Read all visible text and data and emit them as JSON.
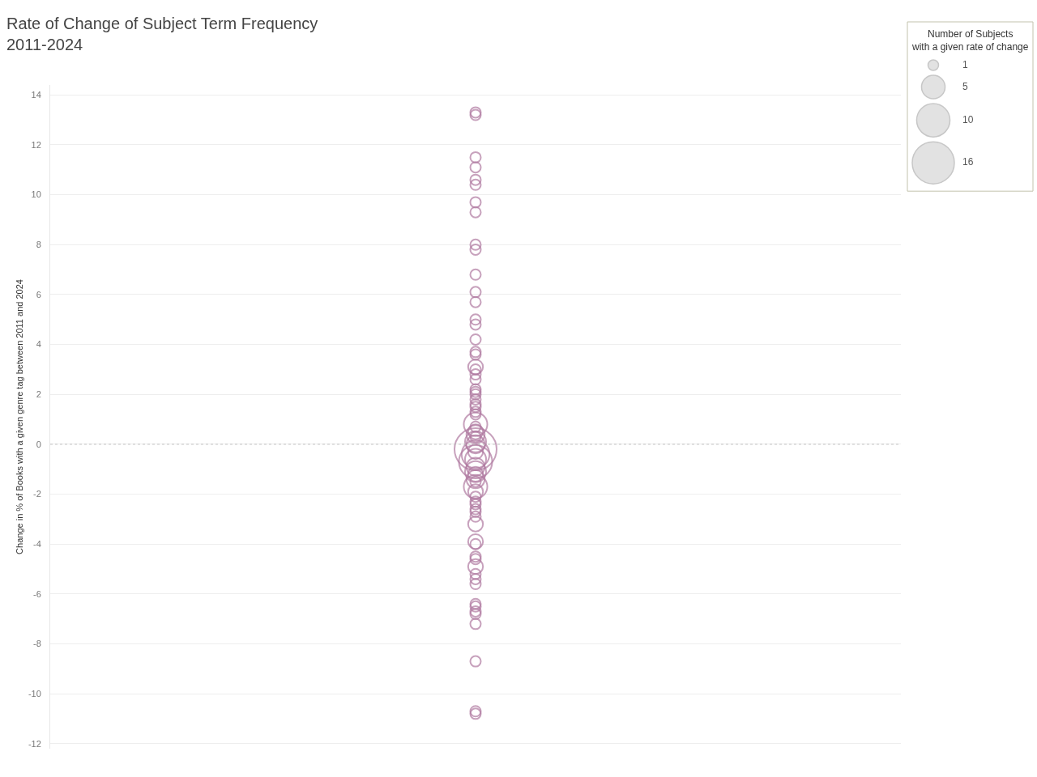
{
  "chart_data": {
    "type": "bubble",
    "title": "Rate of Change of Subject Term Frequency\n2011-2024",
    "ylabel": "Change in % of Books with a given genre tag between 2011 and 2024",
    "legend_title": "Number of Subjects\nwith a given rate of change",
    "size_legend": [
      1,
      5,
      10,
      16
    ],
    "categories": [
      null
    ],
    "color": "#b07aa1",
    "marker": "circle",
    "grid": "y",
    "tick_labels": "y",
    "ylim": [
      -12.2,
      14.4
    ],
    "yticks": [
      -12,
      -10,
      -8,
      -6,
      -4,
      -2,
      0,
      2,
      4,
      6,
      8,
      10,
      12,
      14
    ],
    "ref_lines": [
      {
        "axis": "y",
        "value": 0,
        "line_style": "dotted",
        "color": "#c0c0c0"
      }
    ],
    "series": [
      {
        "values": [
          13.3
        ],
        "sizes": [
          1
        ]
      },
      {
        "values": [
          13.2
        ],
        "sizes": [
          1
        ]
      },
      {
        "values": [
          11.5
        ],
        "sizes": [
          1
        ]
      },
      {
        "values": [
          11.1
        ],
        "sizes": [
          1
        ]
      },
      {
        "values": [
          10.6
        ],
        "sizes": [
          1
        ]
      },
      {
        "values": [
          10.4
        ],
        "sizes": [
          1
        ]
      },
      {
        "values": [
          9.7
        ],
        "sizes": [
          1
        ]
      },
      {
        "values": [
          9.3
        ],
        "sizes": [
          1
        ]
      },
      {
        "values": [
          8.0
        ],
        "sizes": [
          1
        ]
      },
      {
        "values": [
          7.8
        ],
        "sizes": [
          1
        ]
      },
      {
        "values": [
          6.8
        ],
        "sizes": [
          1
        ]
      },
      {
        "values": [
          6.1
        ],
        "sizes": [
          1
        ]
      },
      {
        "values": [
          5.7
        ],
        "sizes": [
          1
        ]
      },
      {
        "values": [
          5.0
        ],
        "sizes": [
          1
        ]
      },
      {
        "values": [
          4.8
        ],
        "sizes": [
          1
        ]
      },
      {
        "values": [
          4.2
        ],
        "sizes": [
          1
        ]
      },
      {
        "values": [
          3.7
        ],
        "sizes": [
          1
        ]
      },
      {
        "values": [
          3.6
        ],
        "sizes": [
          1
        ]
      },
      {
        "values": [
          3.1
        ],
        "sizes": [
          2
        ]
      },
      {
        "values": [
          3.0
        ],
        "sizes": [
          1
        ]
      },
      {
        "values": [
          2.8
        ],
        "sizes": [
          1
        ]
      },
      {
        "values": [
          2.6
        ],
        "sizes": [
          1
        ]
      },
      {
        "values": [
          2.2
        ],
        "sizes": [
          1
        ]
      },
      {
        "values": [
          2.1
        ],
        "sizes": [
          1
        ]
      },
      {
        "values": [
          2.0
        ],
        "sizes": [
          1
        ]
      },
      {
        "values": [
          1.8
        ],
        "sizes": [
          1
        ]
      },
      {
        "values": [
          1.6
        ],
        "sizes": [
          1
        ]
      },
      {
        "values": [
          1.5
        ],
        "sizes": [
          1
        ]
      },
      {
        "values": [
          1.3
        ],
        "sizes": [
          1
        ]
      },
      {
        "values": [
          1.2
        ],
        "sizes": [
          1
        ]
      },
      {
        "values": [
          0.8
        ],
        "sizes": [
          5
        ]
      },
      {
        "values": [
          0.7
        ],
        "sizes": [
          1
        ]
      },
      {
        "values": [
          0.5
        ],
        "sizes": [
          2
        ]
      },
      {
        "values": [
          0.4
        ],
        "sizes": [
          3
        ]
      },
      {
        "values": [
          0.3
        ],
        "sizes": [
          1
        ]
      },
      {
        "values": [
          0.1
        ],
        "sizes": [
          4
        ]
      },
      {
        "values": [
          0.0
        ],
        "sizes": [
          3
        ]
      },
      {
        "values": [
          -0.2
        ],
        "sizes": [
          16
        ]
      },
      {
        "values": [
          -0.3
        ],
        "sizes": [
          2
        ]
      },
      {
        "values": [
          -0.4
        ],
        "sizes": [
          7
        ]
      },
      {
        "values": [
          -0.6
        ],
        "sizes": [
          4
        ]
      },
      {
        "values": [
          -0.7
        ],
        "sizes": [
          10
        ]
      },
      {
        "values": [
          -0.9
        ],
        "sizes": [
          3
        ]
      },
      {
        "values": [
          -1.1
        ],
        "sizes": [
          4
        ]
      },
      {
        "values": [
          -1.2
        ],
        "sizes": [
          2
        ]
      },
      {
        "values": [
          -1.4
        ],
        "sizes": [
          3
        ]
      },
      {
        "values": [
          -1.5
        ],
        "sizes": [
          1
        ]
      },
      {
        "values": [
          -1.7
        ],
        "sizes": [
          5
        ]
      },
      {
        "values": [
          -1.9
        ],
        "sizes": [
          2
        ]
      },
      {
        "values": [
          -2.1
        ],
        "sizes": [
          1
        ]
      },
      {
        "values": [
          -2.3
        ],
        "sizes": [
          1
        ]
      },
      {
        "values": [
          -2.4
        ],
        "sizes": [
          1
        ]
      },
      {
        "values": [
          -2.6
        ],
        "sizes": [
          1
        ]
      },
      {
        "values": [
          -2.7
        ],
        "sizes": [
          1
        ]
      },
      {
        "values": [
          -2.9
        ],
        "sizes": [
          1
        ]
      },
      {
        "values": [
          -3.2
        ],
        "sizes": [
          2
        ]
      },
      {
        "values": [
          -3.9
        ],
        "sizes": [
          2
        ]
      },
      {
        "values": [
          -4.0
        ],
        "sizes": [
          1
        ]
      },
      {
        "values": [
          -4.5
        ],
        "sizes": [
          1
        ]
      },
      {
        "values": [
          -4.6
        ],
        "sizes": [
          1
        ]
      },
      {
        "values": [
          -4.9
        ],
        "sizes": [
          2
        ]
      },
      {
        "values": [
          -5.2
        ],
        "sizes": [
          1
        ]
      },
      {
        "values": [
          -5.4
        ],
        "sizes": [
          1
        ]
      },
      {
        "values": [
          -5.6
        ],
        "sizes": [
          1
        ]
      },
      {
        "values": [
          -6.4
        ],
        "sizes": [
          1
        ]
      },
      {
        "values": [
          -6.5
        ],
        "sizes": [
          1
        ]
      },
      {
        "values": [
          -6.7
        ],
        "sizes": [
          1
        ]
      },
      {
        "values": [
          -6.8
        ],
        "sizes": [
          1
        ]
      },
      {
        "values": [
          -7.2
        ],
        "sizes": [
          1
        ]
      },
      {
        "values": [
          -8.7
        ],
        "sizes": [
          1
        ]
      },
      {
        "values": [
          -10.7
        ],
        "sizes": [
          1
        ]
      },
      {
        "values": [
          -10.8
        ],
        "sizes": [
          1
        ]
      }
    ]
  }
}
